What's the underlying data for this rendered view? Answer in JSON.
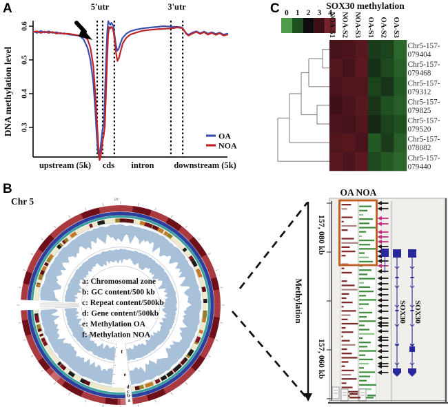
{
  "figure": {
    "panel_a_letter": "A",
    "panel_b_letter": "B",
    "panel_c_letter": "C"
  },
  "chart_data": [
    {
      "type": "line",
      "name": "dna-methylation-profile",
      "ylabel": "DNA methylation level",
      "yticks": [
        "0.6",
        "0.5",
        "0.4",
        "0.3"
      ],
      "ylim": [
        0.2,
        0.63
      ],
      "grid": false,
      "top_labels": [
        "5'utr",
        "3'utr"
      ],
      "region_labels": [
        "upstream (5k)",
        "cds",
        "intron",
        "downstream (5k)"
      ],
      "boundaries": [
        0.33,
        0.358,
        0.418,
        0.709,
        0.77
      ],
      "legend": [
        {
          "name": "OA",
          "color": "#3c4fae"
        },
        {
          "name": "NOA",
          "color": "#bf2428"
        }
      ],
      "series": [
        {
          "name": "OA",
          "color": "#3c4fae",
          "points": [
            [
              0,
              0.585
            ],
            [
              0.02,
              0.58
            ],
            [
              0.04,
              0.586
            ],
            [
              0.06,
              0.581
            ],
            [
              0.08,
              0.585
            ],
            [
              0.1,
              0.58
            ],
            [
              0.12,
              0.582
            ],
            [
              0.14,
              0.578
            ],
            [
              0.16,
              0.579
            ],
            [
              0.18,
              0.576
            ],
            [
              0.2,
              0.574
            ],
            [
              0.22,
              0.573
            ],
            [
              0.24,
              0.571
            ],
            [
              0.26,
              0.561
            ],
            [
              0.28,
              0.536
            ],
            [
              0.295,
              0.5
            ],
            [
              0.31,
              0.432
            ],
            [
              0.32,
              0.352
            ],
            [
              0.328,
              0.27
            ],
            [
              0.334,
              0.225
            ],
            [
              0.339,
              0.215
            ],
            [
              0.345,
              0.232
            ],
            [
              0.351,
              0.262
            ],
            [
              0.356,
              0.288
            ],
            [
              0.36,
              0.3
            ],
            [
              0.365,
              0.315
            ],
            [
              0.371,
              0.42
            ],
            [
              0.377,
              0.52
            ],
            [
              0.382,
              0.588
            ],
            [
              0.387,
              0.615
            ],
            [
              0.392,
              0.608
            ],
            [
              0.398,
              0.604
            ],
            [
              0.403,
              0.61
            ],
            [
              0.408,
              0.606
            ],
            [
              0.413,
              0.6
            ],
            [
              0.418,
              0.578
            ],
            [
              0.426,
              0.545
            ],
            [
              0.433,
              0.527
            ],
            [
              0.44,
              0.532
            ],
            [
              0.45,
              0.55
            ],
            [
              0.46,
              0.565
            ],
            [
              0.48,
              0.578
            ],
            [
              0.5,
              0.585
            ],
            [
              0.53,
              0.59
            ],
            [
              0.56,
              0.593
            ],
            [
              0.6,
              0.596
            ],
            [
              0.64,
              0.598
            ],
            [
              0.67,
              0.6
            ],
            [
              0.7,
              0.599
            ],
            [
              0.72,
              0.598
            ],
            [
              0.74,
              0.598
            ],
            [
              0.76,
              0.597
            ],
            [
              0.77,
              0.594
            ],
            [
              0.78,
              0.585
            ],
            [
              0.79,
              0.578
            ],
            [
              0.8,
              0.575
            ],
            [
              0.82,
              0.581
            ],
            [
              0.84,
              0.585
            ],
            [
              0.86,
              0.579
            ],
            [
              0.88,
              0.584
            ],
            [
              0.9,
              0.578
            ],
            [
              0.92,
              0.582
            ],
            [
              0.94,
              0.577
            ],
            [
              0.96,
              0.581
            ],
            [
              0.98,
              0.575
            ],
            [
              1,
              0.578
            ]
          ]
        },
        {
          "name": "NOA",
          "color": "#bf2428",
          "points": [
            [
              0,
              0.583
            ],
            [
              0.02,
              0.585
            ],
            [
              0.04,
              0.58
            ],
            [
              0.06,
              0.584
            ],
            [
              0.08,
              0.58
            ],
            [
              0.1,
              0.583
            ],
            [
              0.12,
              0.578
            ],
            [
              0.14,
              0.58
            ],
            [
              0.16,
              0.577
            ],
            [
              0.18,
              0.578
            ],
            [
              0.2,
              0.576
            ],
            [
              0.22,
              0.574
            ],
            [
              0.24,
              0.572
            ],
            [
              0.26,
              0.57
            ],
            [
              0.28,
              0.561
            ],
            [
              0.295,
              0.536
            ],
            [
              0.31,
              0.482
            ],
            [
              0.32,
              0.402
            ],
            [
              0.33,
              0.3
            ],
            [
              0.337,
              0.235
            ],
            [
              0.342,
              0.203
            ],
            [
              0.347,
              0.212
            ],
            [
              0.353,
              0.237
            ],
            [
              0.359,
              0.262
            ],
            [
              0.364,
              0.278
            ],
            [
              0.369,
              0.302
            ],
            [
              0.375,
              0.4
            ],
            [
              0.381,
              0.5
            ],
            [
              0.386,
              0.572
            ],
            [
              0.391,
              0.598
            ],
            [
              0.397,
              0.593
            ],
            [
              0.402,
              0.598
            ],
            [
              0.408,
              0.594
            ],
            [
              0.413,
              0.586
            ],
            [
              0.419,
              0.562
            ],
            [
              0.427,
              0.52
            ],
            [
              0.434,
              0.497
            ],
            [
              0.442,
              0.506
            ],
            [
              0.452,
              0.53
            ],
            [
              0.462,
              0.55
            ],
            [
              0.48,
              0.566
            ],
            [
              0.5,
              0.575
            ],
            [
              0.53,
              0.581
            ],
            [
              0.56,
              0.586
            ],
            [
              0.6,
              0.589
            ],
            [
              0.64,
              0.591
            ],
            [
              0.67,
              0.592
            ],
            [
              0.7,
              0.593
            ],
            [
              0.72,
              0.594
            ],
            [
              0.74,
              0.596
            ],
            [
              0.76,
              0.595
            ],
            [
              0.77,
              0.593
            ],
            [
              0.78,
              0.584
            ],
            [
              0.79,
              0.576
            ],
            [
              0.8,
              0.572
            ],
            [
              0.82,
              0.578
            ],
            [
              0.84,
              0.583
            ],
            [
              0.86,
              0.577
            ],
            [
              0.88,
              0.582
            ],
            [
              0.9,
              0.575
            ],
            [
              0.92,
              0.58
            ],
            [
              0.94,
              0.574
            ],
            [
              0.96,
              0.579
            ],
            [
              0.98,
              0.572
            ],
            [
              1,
              0.575
            ]
          ]
        }
      ]
    },
    {
      "type": "circos",
      "chromosome": "Chr 5",
      "legend_lines": [
        "a: Chromosomal zone",
        "b: GC content/500 kb",
        "c: Repeat content/500kb",
        "d: Gene content/500kb",
        "e: Methylation OA",
        "f: Methylation NOA"
      ],
      "top_tick_label": "5",
      "wedge_labels": [
        "f",
        "e",
        "d",
        "c",
        "b",
        "a"
      ],
      "ring_colors": {
        "a_base": "#a93a3f",
        "a_dark": "#6e1019",
        "a_light": "#c66a6e",
        "b": "#2c3e9e",
        "c": "#3f9f9f",
        "d_base": "#efe9cb",
        "d_marks": [
          "#7a1420",
          "#95802a",
          "#1a1a1a",
          "#c27a28",
          "#5a0f16"
        ],
        "hist": "#a9c0d9",
        "hist_edge": "#c3ccd8"
      },
      "a_dark_segments": [
        [
          0.02,
          0.05
        ],
        [
          0.08,
          0.105
        ],
        [
          0.13,
          0.165
        ],
        [
          0.205,
          0.225
        ],
        [
          0.27,
          0.305
        ],
        [
          0.34,
          0.365
        ],
        [
          0.425,
          0.455
        ],
        [
          0.505,
          0.525
        ],
        [
          0.565,
          0.6
        ],
        [
          0.635,
          0.655
        ],
        [
          0.7,
          0.725
        ],
        [
          0.785,
          0.805
        ],
        [
          0.845,
          0.875
        ],
        [
          0.935,
          0.965
        ]
      ],
      "a_light_segments": [
        [
          0.48,
          0.5
        ],
        [
          0.61,
          0.625
        ]
      ]
    },
    {
      "type": "heatmap",
      "title": "SOX30 methylation",
      "scale_ticks": [
        "0",
        "1",
        "2",
        "3",
        "4"
      ],
      "scale_colors": [
        "#4e9b4a",
        "#1f5020",
        "#0d0d0d",
        "#401018",
        "#77212a"
      ],
      "columns": [
        "NOA-S1",
        "NOA-S2",
        "NOA-S3",
        "OA-S1",
        "OA-S2",
        "OA-S3"
      ],
      "rows": [
        "Chr5-157-079404",
        "Chr5-157-079468",
        "Chr5-157-079312",
        "Chr5-157-079825",
        "Chr5-157-079520",
        "Chr5-157-078082",
        "Chr5-157-079440"
      ],
      "values": [
        [
          3.1,
          3.2,
          3.4,
          1.3,
          1.2,
          0.7
        ],
        [
          3.3,
          3.1,
          3.5,
          1.5,
          1.1,
          0.8
        ],
        [
          3.2,
          3.3,
          3.3,
          1.2,
          1.4,
          0.9
        ],
        [
          3.0,
          3.2,
          3.4,
          1.4,
          1.0,
          0.8
        ],
        [
          3.2,
          3.1,
          3.3,
          1.6,
          1.2,
          1.0
        ],
        [
          3.3,
          3.4,
          3.2,
          0.9,
          1.3,
          0.8
        ],
        [
          3.4,
          3.2,
          3.5,
          1.1,
          0.9,
          0.7
        ]
      ]
    },
    {
      "type": "genome-tracks",
      "header": "OA NOA",
      "axis_label": "Methylation",
      "coord_labels": [
        "157, 080 kb",
        "157, 060 kb"
      ],
      "track_colors": {
        "oa": "#7d2a2a",
        "oa_light": "#ad8585",
        "noa": "#3f8f3f",
        "noa_light": "#8cc48c",
        "arrow_black": "#1a1a1a",
        "arrow_magenta": "#c22d80",
        "gene": "#28289a",
        "highlight_box": "#c05a1e"
      },
      "oa_bars": [
        14,
        8,
        0,
        16,
        3,
        22,
        9,
        0,
        18,
        24,
        12,
        20,
        6,
        0,
        10,
        4,
        15,
        0,
        8,
        19,
        23,
        11,
        7,
        16,
        3,
        21,
        13,
        9,
        24,
        6,
        17,
        2,
        12,
        20,
        8,
        15,
        23,
        10,
        5,
        18,
        14,
        22,
        7,
        16,
        24,
        12
      ],
      "oa_light_idx": [
        1,
        5,
        9,
        14,
        20,
        26,
        33,
        40
      ],
      "noa_bars": [
        18,
        12,
        6,
        20,
        15,
        24,
        10,
        4,
        22,
        16,
        25,
        8,
        14,
        20,
        5,
        18,
        12,
        23,
        7,
        16,
        21,
        10,
        25,
        14,
        6,
        19,
        11,
        24,
        8,
        15,
        22,
        5,
        17,
        12,
        25,
        9,
        20,
        14,
        7,
        23,
        16,
        11,
        25,
        18,
        9,
        21
      ],
      "noa_light_idx": [
        2,
        7,
        12,
        18,
        24,
        30,
        37,
        43
      ],
      "arrows": [
        [
          295,
          "k"
        ],
        [
          303,
          "k"
        ],
        [
          317,
          "m"
        ],
        [
          325,
          "m"
        ],
        [
          337,
          "m"
        ],
        [
          344,
          "m"
        ],
        [
          351,
          "m"
        ],
        [
          358,
          "k"
        ],
        [
          365,
          "k"
        ],
        [
          372,
          "k"
        ],
        [
          379,
          "k"
        ],
        [
          386,
          "m"
        ],
        [
          394,
          "k"
        ],
        [
          404,
          "k"
        ],
        [
          412,
          "k"
        ],
        [
          420,
          "k"
        ],
        [
          428,
          "k"
        ],
        [
          436,
          "k"
        ],
        [
          444,
          "k"
        ],
        [
          452,
          "k"
        ],
        [
          462,
          "k"
        ],
        [
          469,
          "k"
        ],
        [
          473,
          "k"
        ],
        [
          481,
          "k"
        ],
        [
          490,
          "k"
        ],
        [
          494,
          "k"
        ],
        [
          502,
          "k"
        ],
        [
          510,
          "k"
        ],
        [
          519,
          "k"
        ],
        [
          528,
          "k"
        ],
        [
          532,
          "k"
        ],
        [
          541,
          "k"
        ]
      ],
      "genes": [
        {
          "label": "SOX30"
        },
        {
          "label": "SOX30"
        }
      ]
    }
  ]
}
